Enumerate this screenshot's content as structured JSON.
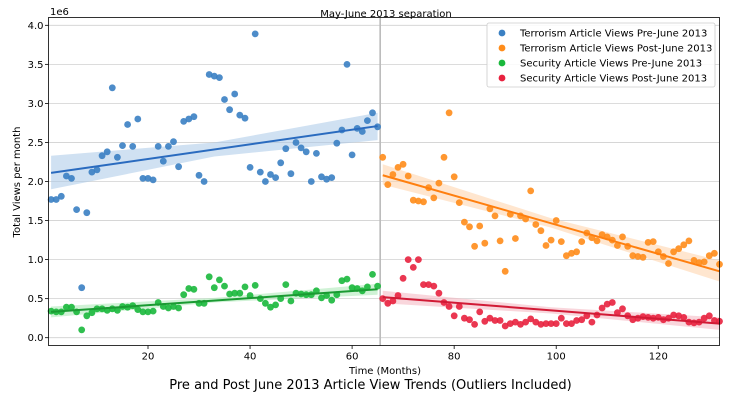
{
  "caption": "Pre and Post June 2013 Article View Trends (Outliers Included)",
  "chart_data": {
    "type": "scatter",
    "title": "May-June 2013 separation",
    "xlabel": "Time (Months)",
    "ylabel": "Total Views per month",
    "y_multiplier_label": "1e6",
    "xlim": [
      0.5,
      132
    ],
    "ylim": [
      -0.1,
      4.1
    ],
    "x_ticks": [
      20,
      40,
      60,
      80,
      100,
      120
    ],
    "y_ticks": [
      0.0,
      0.5,
      1.0,
      1.5,
      2.0,
      2.5,
      3.0,
      3.5,
      4.0
    ],
    "grid": "horizontal",
    "legend_position": "top-right",
    "separator_x": 65.5,
    "series": [
      {
        "name": "Terrorism Article Views Pre-June 2013",
        "color": "#3a80c3",
        "fit_color": "#2a6bbf",
        "band_color": "#aac8e8",
        "fit": [
          [
            1,
            2.11
          ],
          [
            65,
            2.71
          ]
        ],
        "band": [
          [
            1,
            1.9,
            2.33
          ],
          [
            33,
            2.32,
            2.5
          ],
          [
            65,
            2.53,
            2.88
          ]
        ],
        "points": [
          [
            1,
            1.77
          ],
          [
            2,
            1.77
          ],
          [
            3,
            1.81
          ],
          [
            4,
            2.07
          ],
          [
            5,
            2.04
          ],
          [
            6,
            1.64
          ],
          [
            7,
            0.64
          ],
          [
            8,
            1.6
          ],
          [
            9,
            2.12
          ],
          [
            10,
            2.15
          ],
          [
            11,
            2.33
          ],
          [
            12,
            2.38
          ],
          [
            13,
            3.2
          ],
          [
            14,
            2.31
          ],
          [
            15,
            2.46
          ],
          [
            16,
            2.73
          ],
          [
            17,
            2.45
          ],
          [
            18,
            2.8
          ],
          [
            19,
            2.04
          ],
          [
            20,
            2.04
          ],
          [
            21,
            2.02
          ],
          [
            22,
            2.45
          ],
          [
            23,
            2.26
          ],
          [
            24,
            2.45
          ],
          [
            25,
            2.51
          ],
          [
            26,
            2.19
          ],
          [
            27,
            2.77
          ],
          [
            28,
            2.8
          ],
          [
            29,
            2.83
          ],
          [
            30,
            2.08
          ],
          [
            31,
            2.0
          ],
          [
            32,
            3.37
          ],
          [
            33,
            3.35
          ],
          [
            34,
            3.33
          ],
          [
            35,
            3.05
          ],
          [
            36,
            2.92
          ],
          [
            37,
            3.12
          ],
          [
            38,
            2.85
          ],
          [
            39,
            2.81
          ],
          [
            40,
            2.18
          ],
          [
            41,
            3.89
          ],
          [
            42,
            2.12
          ],
          [
            43,
            2.0
          ],
          [
            44,
            2.09
          ],
          [
            45,
            2.05
          ],
          [
            46,
            2.24
          ],
          [
            47,
            2.42
          ],
          [
            48,
            2.1
          ],
          [
            49,
            2.5
          ],
          [
            50,
            2.43
          ],
          [
            51,
            2.38
          ],
          [
            52,
            2.0
          ],
          [
            53,
            2.36
          ],
          [
            54,
            2.06
          ],
          [
            55,
            2.03
          ],
          [
            56,
            2.05
          ],
          [
            57,
            2.49
          ],
          [
            58,
            2.66
          ],
          [
            59,
            3.5
          ],
          [
            60,
            2.34
          ],
          [
            61,
            2.68
          ],
          [
            62,
            2.64
          ],
          [
            63,
            2.78
          ],
          [
            64,
            2.88
          ],
          [
            65,
            2.7
          ]
        ]
      },
      {
        "name": "Terrorism Article Views Post-June 2013",
        "color": "#ff8c1a",
        "fit_color": "#ff7f0e",
        "band_color": "#ffd2a8",
        "fit": [
          [
            66,
            2.08
          ],
          [
            132,
            0.85
          ]
        ],
        "band": [
          [
            66,
            1.96,
            2.22
          ],
          [
            99,
            1.41,
            1.53
          ],
          [
            132,
            0.72,
            0.99
          ]
        ],
        "points": [
          [
            66,
            2.31
          ],
          [
            67,
            1.96
          ],
          [
            68,
            2.09
          ],
          [
            69,
            2.18
          ],
          [
            70,
            2.22
          ],
          [
            71,
            2.07
          ],
          [
            72,
            1.76
          ],
          [
            73,
            1.75
          ],
          [
            74,
            1.74
          ],
          [
            75,
            1.92
          ],
          [
            76,
            1.79
          ],
          [
            77,
            1.98
          ],
          [
            78,
            2.31
          ],
          [
            79,
            2.88
          ],
          [
            80,
            2.06
          ],
          [
            81,
            1.73
          ],
          [
            82,
            1.48
          ],
          [
            83,
            1.42
          ],
          [
            84,
            1.17
          ],
          [
            85,
            1.43
          ],
          [
            86,
            1.21
          ],
          [
            87,
            1.65
          ],
          [
            88,
            1.56
          ],
          [
            89,
            1.24
          ],
          [
            90,
            0.85
          ],
          [
            91,
            1.58
          ],
          [
            92,
            1.27
          ],
          [
            93,
            1.56
          ],
          [
            94,
            1.52
          ],
          [
            95,
            1.88
          ],
          [
            96,
            1.45
          ],
          [
            97,
            1.37
          ],
          [
            98,
            1.18
          ],
          [
            99,
            1.25
          ],
          [
            100,
            1.5
          ],
          [
            101,
            1.23
          ],
          [
            102,
            1.05
          ],
          [
            103,
            1.08
          ],
          [
            104,
            1.1
          ],
          [
            105,
            1.23
          ],
          [
            106,
            1.34
          ],
          [
            107,
            1.28
          ],
          [
            108,
            1.24
          ],
          [
            109,
            1.32
          ],
          [
            110,
            1.29
          ],
          [
            111,
            1.25
          ],
          [
            112,
            1.18
          ],
          [
            113,
            1.29
          ],
          [
            114,
            1.17
          ],
          [
            115,
            1.05
          ],
          [
            116,
            1.04
          ],
          [
            117,
            1.03
          ],
          [
            118,
            1.22
          ],
          [
            119,
            1.23
          ],
          [
            120,
            1.1
          ],
          [
            121,
            1.04
          ],
          [
            122,
            0.95
          ],
          [
            123,
            1.1
          ],
          [
            124,
            1.14
          ],
          [
            125,
            1.19
          ],
          [
            126,
            1.24
          ],
          [
            127,
            0.99
          ],
          [
            128,
            0.96
          ],
          [
            129,
            0.97
          ],
          [
            130,
            1.05
          ],
          [
            131,
            1.08
          ],
          [
            132,
            0.94
          ]
        ]
      },
      {
        "name": "Security Article Views Pre-June 2013",
        "color": "#1ab83c",
        "fit_color": "#1a9a32",
        "band_color": "#a9e8b4",
        "fit": [
          [
            1,
            0.33
          ],
          [
            65,
            0.62
          ]
        ],
        "band": [
          [
            1,
            0.26,
            0.4
          ],
          [
            33,
            0.45,
            0.51
          ],
          [
            65,
            0.55,
            0.69
          ]
        ],
        "points": [
          [
            1,
            0.34
          ],
          [
            2,
            0.33
          ],
          [
            3,
            0.33
          ],
          [
            4,
            0.39
          ],
          [
            5,
            0.39
          ],
          [
            6,
            0.33
          ],
          [
            7,
            0.1
          ],
          [
            8,
            0.28
          ],
          [
            9,
            0.32
          ],
          [
            10,
            0.37
          ],
          [
            11,
            0.37
          ],
          [
            12,
            0.35
          ],
          [
            13,
            0.37
          ],
          [
            14,
            0.35
          ],
          [
            15,
            0.4
          ],
          [
            16,
            0.39
          ],
          [
            17,
            0.41
          ],
          [
            18,
            0.36
          ],
          [
            19,
            0.33
          ],
          [
            20,
            0.33
          ],
          [
            21,
            0.34
          ],
          [
            22,
            0.45
          ],
          [
            23,
            0.4
          ],
          [
            24,
            0.38
          ],
          [
            25,
            0.4
          ],
          [
            26,
            0.38
          ],
          [
            27,
            0.55
          ],
          [
            28,
            0.63
          ],
          [
            29,
            0.62
          ],
          [
            30,
            0.44
          ],
          [
            31,
            0.44
          ],
          [
            32,
            0.78
          ],
          [
            33,
            0.64
          ],
          [
            34,
            0.74
          ],
          [
            35,
            0.66
          ],
          [
            36,
            0.56
          ],
          [
            37,
            0.57
          ],
          [
            38,
            0.57
          ],
          [
            39,
            0.65
          ],
          [
            40,
            0.54
          ],
          [
            41,
            0.67
          ],
          [
            42,
            0.5
          ],
          [
            43,
            0.44
          ],
          [
            44,
            0.39
          ],
          [
            45,
            0.42
          ],
          [
            46,
            0.5
          ],
          [
            47,
            0.68
          ],
          [
            48,
            0.47
          ],
          [
            49,
            0.57
          ],
          [
            50,
            0.56
          ],
          [
            51,
            0.55
          ],
          [
            52,
            0.55
          ],
          [
            53,
            0.6
          ],
          [
            54,
            0.51
          ],
          [
            55,
            0.54
          ],
          [
            56,
            0.48
          ],
          [
            57,
            0.55
          ],
          [
            58,
            0.73
          ],
          [
            59,
            0.75
          ],
          [
            60,
            0.64
          ],
          [
            61,
            0.63
          ],
          [
            62,
            0.6
          ],
          [
            63,
            0.65
          ],
          [
            64,
            0.81
          ],
          [
            65,
            0.66
          ]
        ]
      },
      {
        "name": "Security Article Views Post-June 2013",
        "color": "#e8213e",
        "fit_color": "#d11a35",
        "band_color": "#f4b4bf",
        "fit": [
          [
            66,
            0.52
          ],
          [
            132,
            0.18
          ]
        ],
        "band": [
          [
            66,
            0.44,
            0.6
          ],
          [
            99,
            0.31,
            0.39
          ],
          [
            132,
            0.1,
            0.26
          ]
        ],
        "points": [
          [
            66,
            0.5
          ],
          [
            67,
            0.44
          ],
          [
            68,
            0.47
          ],
          [
            69,
            0.54
          ],
          [
            70,
            0.76
          ],
          [
            71,
            1.0
          ],
          [
            72,
            0.9
          ],
          [
            73,
            1.0
          ],
          [
            74,
            0.68
          ],
          [
            75,
            0.68
          ],
          [
            76,
            0.66
          ],
          [
            77,
            0.57
          ],
          [
            78,
            0.45
          ],
          [
            79,
            0.4
          ],
          [
            80,
            0.28
          ],
          [
            81,
            0.4
          ],
          [
            82,
            0.25
          ],
          [
            83,
            0.23
          ],
          [
            84,
            0.17
          ],
          [
            85,
            0.33
          ],
          [
            86,
            0.21
          ],
          [
            87,
            0.25
          ],
          [
            88,
            0.22
          ],
          [
            89,
            0.22
          ],
          [
            90,
            0.15
          ],
          [
            91,
            0.18
          ],
          [
            92,
            0.2
          ],
          [
            93,
            0.17
          ],
          [
            94,
            0.2
          ],
          [
            95,
            0.24
          ],
          [
            96,
            0.2
          ],
          [
            97,
            0.17
          ],
          [
            98,
            0.18
          ],
          [
            99,
            0.18
          ],
          [
            100,
            0.18
          ],
          [
            101,
            0.25
          ],
          [
            102,
            0.18
          ],
          [
            103,
            0.18
          ],
          [
            104,
            0.22
          ],
          [
            105,
            0.23
          ],
          [
            106,
            0.28
          ],
          [
            107,
            0.2
          ],
          [
            108,
            0.29
          ],
          [
            109,
            0.38
          ],
          [
            110,
            0.43
          ],
          [
            111,
            0.45
          ],
          [
            112,
            0.32
          ],
          [
            113,
            0.37
          ],
          [
            114,
            0.28
          ],
          [
            115,
            0.23
          ],
          [
            116,
            0.25
          ],
          [
            117,
            0.27
          ],
          [
            118,
            0.26
          ],
          [
            119,
            0.25
          ],
          [
            120,
            0.26
          ],
          [
            121,
            0.23
          ],
          [
            122,
            0.25
          ],
          [
            123,
            0.29
          ],
          [
            124,
            0.28
          ],
          [
            125,
            0.26
          ],
          [
            126,
            0.2
          ],
          [
            127,
            0.19
          ],
          [
            128,
            0.2
          ],
          [
            129,
            0.25
          ],
          [
            130,
            0.28
          ],
          [
            131,
            0.22
          ],
          [
            132,
            0.21
          ]
        ]
      }
    ]
  }
}
